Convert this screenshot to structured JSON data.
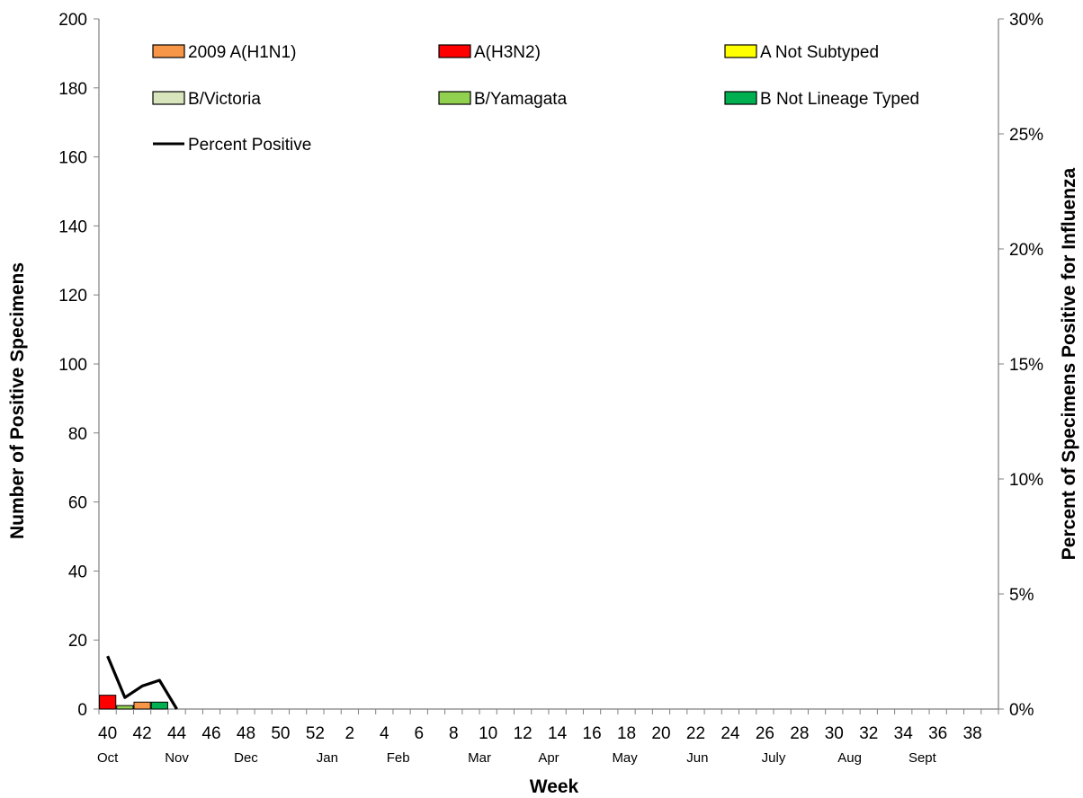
{
  "chart_data": {
    "type": "bar",
    "stacked": true,
    "xlabel": "Week",
    "ylabel": "Number of Positive Specimens",
    "y2label": "Percent of Specimens Positive for Influenza",
    "ylim": [
      0,
      200
    ],
    "yticks": [
      "0",
      "20",
      "40",
      "60",
      "80",
      "100",
      "120",
      "140",
      "160",
      "180",
      "200"
    ],
    "y2lim": [
      0,
      30
    ],
    "y2ticks": [
      "0%",
      "5%",
      "10%",
      "15%",
      "20%",
      "25%",
      "30%"
    ],
    "weeks": [
      40,
      41,
      42,
      43,
      44,
      45,
      46,
      47,
      48,
      49,
      50,
      51,
      52,
      1,
      2,
      3,
      4,
      5,
      6,
      7,
      8,
      9,
      10,
      11,
      12,
      13,
      14,
      15,
      16,
      17,
      18,
      19,
      20,
      21,
      22,
      23,
      24,
      25,
      26,
      27,
      28,
      29,
      30,
      31,
      32,
      33,
      34,
      35,
      36,
      37,
      38,
      39
    ],
    "week_tick_labels": [
      "40",
      "42",
      "44",
      "46",
      "48",
      "50",
      "52",
      "2",
      "4",
      "6",
      "8",
      "10",
      "12",
      "14",
      "16",
      "18",
      "20",
      "22",
      "24",
      "26",
      "28",
      "30",
      "32",
      "34",
      "36",
      "38"
    ],
    "months": [
      {
        "label": "Oct",
        "week_index": 0.5
      },
      {
        "label": "Nov",
        "week_index": 4.5
      },
      {
        "label": "Dec",
        "week_index": 8.5
      },
      {
        "label": "Jan",
        "week_index": 13.2
      },
      {
        "label": "Feb",
        "week_index": 17.3
      },
      {
        "label": "Mar",
        "week_index": 22.0
      },
      {
        "label": "Apr",
        "week_index": 26.0
      },
      {
        "label": "May",
        "week_index": 30.4
      },
      {
        "label": "Jun",
        "week_index": 34.6
      },
      {
        "label": "July",
        "week_index": 39.0
      },
      {
        "label": "Aug",
        "week_index": 43.4
      },
      {
        "label": "Sept",
        "week_index": 47.6
      }
    ],
    "series": [
      {
        "name": "2009 A(H1N1)",
        "color": "#f79646",
        "values": [
          0,
          0,
          2,
          0
        ]
      },
      {
        "name": "A(H3N2)",
        "color": "#ff0000",
        "values": [
          4,
          0,
          0,
          0
        ]
      },
      {
        "name": "A Not Subtyped",
        "color": "#ffff00",
        "values": [
          0,
          0,
          0,
          0
        ]
      },
      {
        "name": "B/Victoria",
        "color": "#d8e4bc",
        "values": [
          0,
          0,
          0,
          0
        ]
      },
      {
        "name": "B/Yamagata",
        "color": "#92d050",
        "values": [
          0,
          1,
          0,
          0
        ]
      },
      {
        "name": "B Not Lineage Typed",
        "color": "#00b050",
        "values": [
          0,
          0,
          0,
          2
        ]
      }
    ],
    "line": {
      "name": "Percent Positive",
      "color": "#000000",
      "axis": "right",
      "x_week_index": [
        0,
        1,
        2,
        3,
        4
      ],
      "values": [
        2.3,
        0.5,
        1.0,
        1.25,
        0
      ]
    },
    "legend": "top-left, inside plot, 3 columns",
    "grid": false
  }
}
